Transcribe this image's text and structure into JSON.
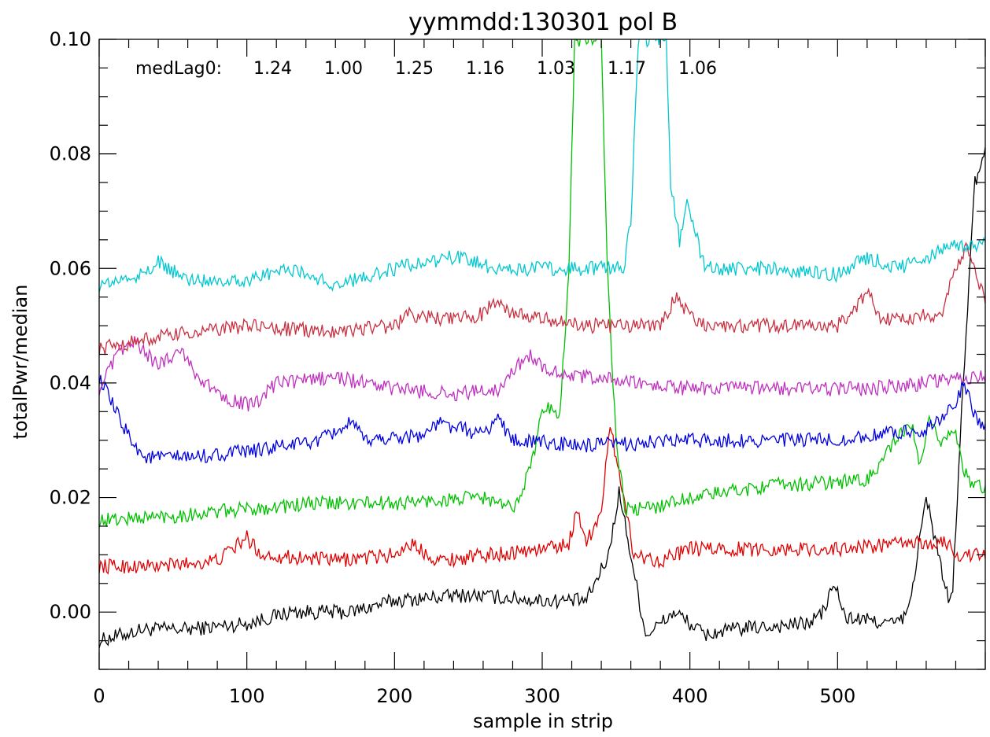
{
  "chart_data": {
    "type": "line",
    "title": "yymmdd:130301 pol B",
    "xlabel": "sample in strip",
    "ylabel": "totalPwr/median",
    "xlim": [
      0,
      600
    ],
    "ylim": [
      -0.01,
      0.1
    ],
    "xticks": [
      0,
      100,
      200,
      300,
      400,
      500
    ],
    "yticks": [
      0.0,
      0.02,
      0.04,
      0.06,
      0.08,
      0.1
    ],
    "xtick_labels": [
      "0",
      "100",
      "200",
      "300",
      "400",
      "500"
    ],
    "ytick_labels": [
      "0.00",
      "0.02",
      "0.04",
      "0.06",
      "0.08",
      "0.10"
    ],
    "grid": false,
    "annotation": {
      "prefix": "medLag0:",
      "values": [
        "1.24",
        "1.00",
        "1.25",
        "1.16",
        "1.03",
        "1.17",
        "1.06"
      ]
    },
    "series": [
      {
        "color": "#000000",
        "anchors": [
          [
            0,
            -0.005
          ],
          [
            30,
            -0.003
          ],
          [
            60,
            -0.003
          ],
          [
            100,
            -0.002
          ],
          [
            130,
            0.0
          ],
          [
            170,
            0.0
          ],
          [
            200,
            0.002
          ],
          [
            250,
            0.003
          ],
          [
            300,
            0.002
          ],
          [
            330,
            0.002
          ],
          [
            345,
            0.01
          ],
          [
            352,
            0.021
          ],
          [
            360,
            0.01
          ],
          [
            370,
            -0.004
          ],
          [
            390,
            0.0
          ],
          [
            410,
            -0.004
          ],
          [
            430,
            -0.003
          ],
          [
            480,
            -0.002
          ],
          [
            490,
            0.0
          ],
          [
            498,
            0.005
          ],
          [
            505,
            -0.001
          ],
          [
            540,
            -0.002
          ],
          [
            548,
            0.0
          ],
          [
            560,
            0.02
          ],
          [
            575,
            0.002
          ],
          [
            578,
            0.004
          ],
          [
            585,
            0.04
          ],
          [
            593,
            0.075
          ],
          [
            600,
            0.08
          ]
        ]
      },
      {
        "color": "#e00000",
        "anchors": [
          [
            0,
            0.008
          ],
          [
            40,
            0.008
          ],
          [
            80,
            0.009
          ],
          [
            100,
            0.013
          ],
          [
            110,
            0.01
          ],
          [
            160,
            0.009
          ],
          [
            200,
            0.01
          ],
          [
            210,
            0.012
          ],
          [
            230,
            0.009
          ],
          [
            300,
            0.011
          ],
          [
            318,
            0.012
          ],
          [
            324,
            0.018
          ],
          [
            330,
            0.012
          ],
          [
            340,
            0.018
          ],
          [
            346,
            0.032
          ],
          [
            352,
            0.025
          ],
          [
            362,
            0.01
          ],
          [
            380,
            0.009
          ],
          [
            400,
            0.011
          ],
          [
            500,
            0.011
          ],
          [
            545,
            0.012
          ],
          [
            575,
            0.012
          ],
          [
            580,
            0.01
          ],
          [
            600,
            0.01
          ]
        ]
      },
      {
        "color": "#00c000",
        "anchors": [
          [
            0,
            0.016
          ],
          [
            60,
            0.017
          ],
          [
            100,
            0.018
          ],
          [
            150,
            0.019
          ],
          [
            200,
            0.019
          ],
          [
            260,
            0.02
          ],
          [
            280,
            0.018
          ],
          [
            292,
            0.025
          ],
          [
            300,
            0.035
          ],
          [
            308,
            0.036
          ],
          [
            312,
            0.034
          ],
          [
            318,
            0.06
          ],
          [
            322,
            0.1
          ],
          [
            340,
            0.1
          ],
          [
            344,
            0.06
          ],
          [
            350,
            0.03
          ],
          [
            356,
            0.018
          ],
          [
            370,
            0.018
          ],
          [
            400,
            0.02
          ],
          [
            450,
            0.022
          ],
          [
            520,
            0.023
          ],
          [
            540,
            0.03
          ],
          [
            550,
            0.033
          ],
          [
            556,
            0.025
          ],
          [
            562,
            0.033
          ],
          [
            570,
            0.03
          ],
          [
            580,
            0.032
          ],
          [
            585,
            0.025
          ],
          [
            590,
            0.022
          ],
          [
            600,
            0.022
          ]
        ]
      },
      {
        "color": "#0000e0",
        "anchors": [
          [
            0,
            0.041
          ],
          [
            15,
            0.033
          ],
          [
            30,
            0.027
          ],
          [
            60,
            0.027
          ],
          [
            100,
            0.028
          ],
          [
            150,
            0.03
          ],
          [
            170,
            0.033
          ],
          [
            180,
            0.03
          ],
          [
            220,
            0.031
          ],
          [
            230,
            0.033
          ],
          [
            260,
            0.031
          ],
          [
            270,
            0.034
          ],
          [
            280,
            0.03
          ],
          [
            330,
            0.029
          ],
          [
            400,
            0.03
          ],
          [
            460,
            0.03
          ],
          [
            500,
            0.03
          ],
          [
            560,
            0.032
          ],
          [
            580,
            0.036
          ],
          [
            585,
            0.04
          ],
          [
            592,
            0.035
          ],
          [
            600,
            0.032
          ]
        ]
      },
      {
        "color": "#c030c0",
        "anchors": [
          [
            0,
            0.039
          ],
          [
            15,
            0.046
          ],
          [
            25,
            0.047
          ],
          [
            40,
            0.043
          ],
          [
            55,
            0.046
          ],
          [
            70,
            0.04
          ],
          [
            90,
            0.037
          ],
          [
            105,
            0.036
          ],
          [
            120,
            0.04
          ],
          [
            160,
            0.041
          ],
          [
            200,
            0.039
          ],
          [
            240,
            0.038
          ],
          [
            270,
            0.039
          ],
          [
            290,
            0.045
          ],
          [
            300,
            0.043
          ],
          [
            320,
            0.041
          ],
          [
            340,
            0.041
          ],
          [
            360,
            0.04
          ],
          [
            400,
            0.039
          ],
          [
            450,
            0.039
          ],
          [
            520,
            0.039
          ],
          [
            560,
            0.04
          ],
          [
            580,
            0.041
          ],
          [
            600,
            0.041
          ]
        ]
      },
      {
        "color": "#c83040",
        "anchors": [
          [
            0,
            0.046
          ],
          [
            40,
            0.048
          ],
          [
            100,
            0.05
          ],
          [
            150,
            0.049
          ],
          [
            200,
            0.05
          ],
          [
            210,
            0.052
          ],
          [
            240,
            0.051
          ],
          [
            260,
            0.052
          ],
          [
            270,
            0.055
          ],
          [
            280,
            0.052
          ],
          [
            330,
            0.05
          ],
          [
            380,
            0.05
          ],
          [
            390,
            0.055
          ],
          [
            400,
            0.052
          ],
          [
            410,
            0.05
          ],
          [
            460,
            0.05
          ],
          [
            500,
            0.05
          ],
          [
            510,
            0.052
          ],
          [
            520,
            0.056
          ],
          [
            530,
            0.051
          ],
          [
            570,
            0.052
          ],
          [
            580,
            0.06
          ],
          [
            588,
            0.064
          ],
          [
            600,
            0.054
          ]
        ]
      },
      {
        "color": "#00c8d0",
        "anchors": [
          [
            0,
            0.057
          ],
          [
            30,
            0.059
          ],
          [
            40,
            0.061
          ],
          [
            60,
            0.058
          ],
          [
            100,
            0.058
          ],
          [
            130,
            0.06
          ],
          [
            160,
            0.057
          ],
          [
            200,
            0.06
          ],
          [
            240,
            0.062
          ],
          [
            270,
            0.06
          ],
          [
            310,
            0.06
          ],
          [
            340,
            0.06
          ],
          [
            355,
            0.06
          ],
          [
            360,
            0.068
          ],
          [
            365,
            0.1
          ],
          [
            384,
            0.1
          ],
          [
            387,
            0.075
          ],
          [
            393,
            0.065
          ],
          [
            398,
            0.072
          ],
          [
            405,
            0.065
          ],
          [
            410,
            0.06
          ],
          [
            450,
            0.06
          ],
          [
            500,
            0.059
          ],
          [
            520,
            0.062
          ],
          [
            540,
            0.06
          ],
          [
            580,
            0.064
          ],
          [
            600,
            0.064
          ]
        ]
      }
    ]
  }
}
